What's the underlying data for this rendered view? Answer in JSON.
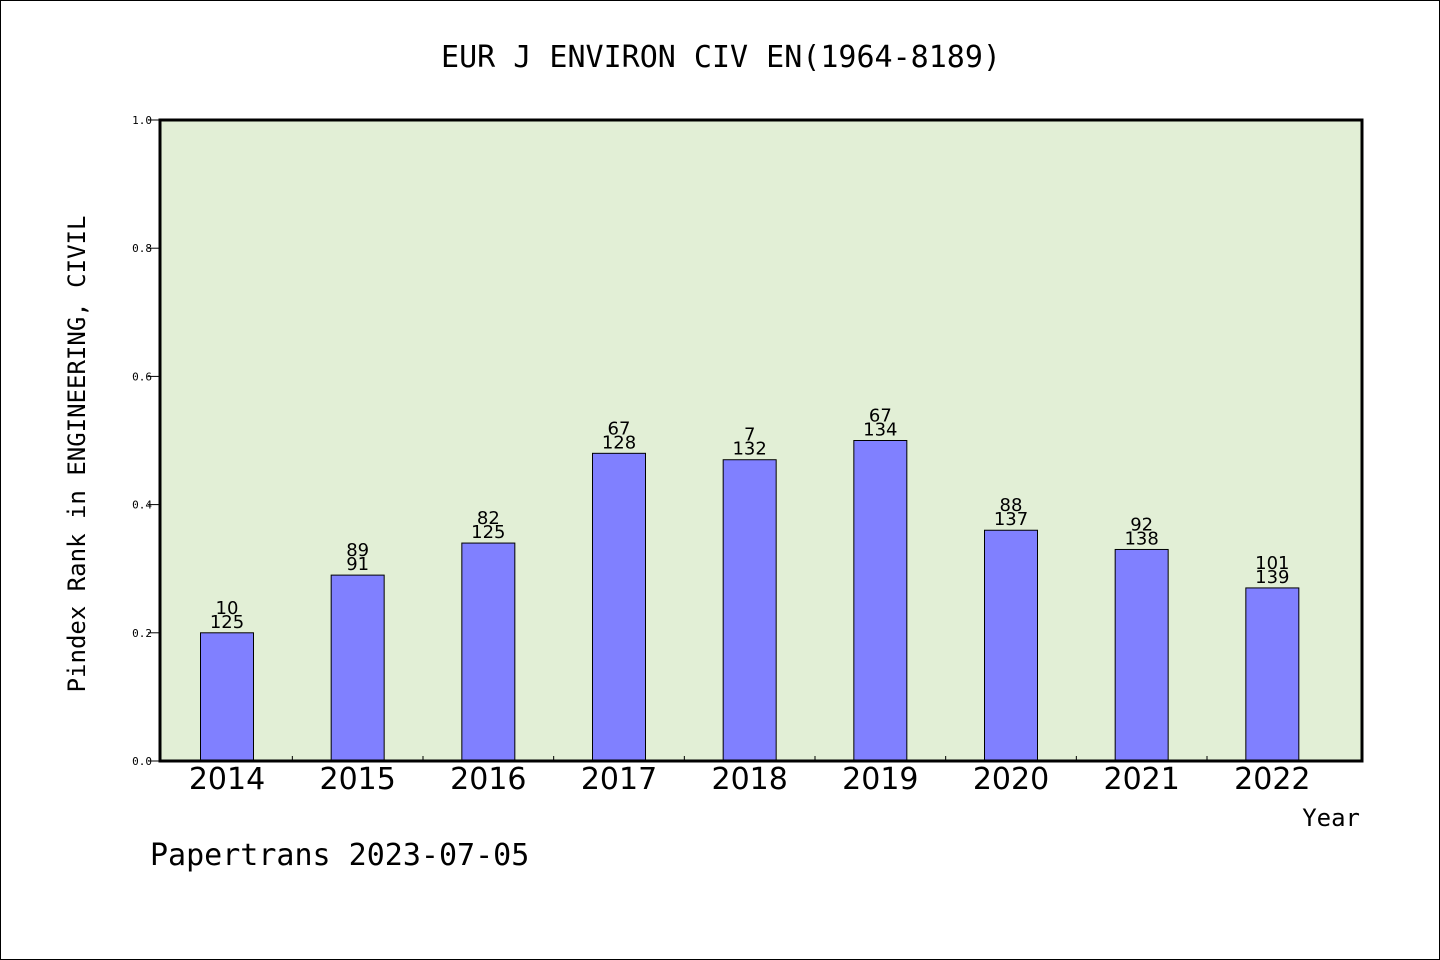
{
  "colors": {
    "plot_background": "#e2efd6",
    "bar_fill": "#8080ff",
    "bar_stroke": "#000000",
    "axis": "#000000"
  },
  "footer": "Papertrans 2023-07-05",
  "chart_data": {
    "type": "bar",
    "title": "EUR J ENVIRON CIV EN(1964-8189)",
    "xlabel": "Year",
    "ylabel": "Pindex Rank in ENGINEERING, CIVIL",
    "ylim": [
      0.0,
      1.0
    ],
    "yticks": [
      "0.0",
      "0.2",
      "0.4",
      "0.6",
      "0.8",
      "1.0"
    ],
    "grid": false,
    "categories": [
      "2014",
      "2015",
      "2016",
      "2017",
      "2018",
      "2019",
      "2020",
      "2021",
      "2022"
    ],
    "values": [
      0.2,
      0.29,
      0.34,
      0.48,
      0.47,
      0.5,
      0.36,
      0.33,
      0.27
    ],
    "rank_labels": [
      "10",
      "89",
      "82",
      "67",
      "7",
      "67",
      "88",
      "92",
      "101"
    ],
    "total_labels": [
      "125",
      "91",
      "125",
      "128",
      "132",
      "134",
      "137",
      "138",
      "139"
    ]
  }
}
